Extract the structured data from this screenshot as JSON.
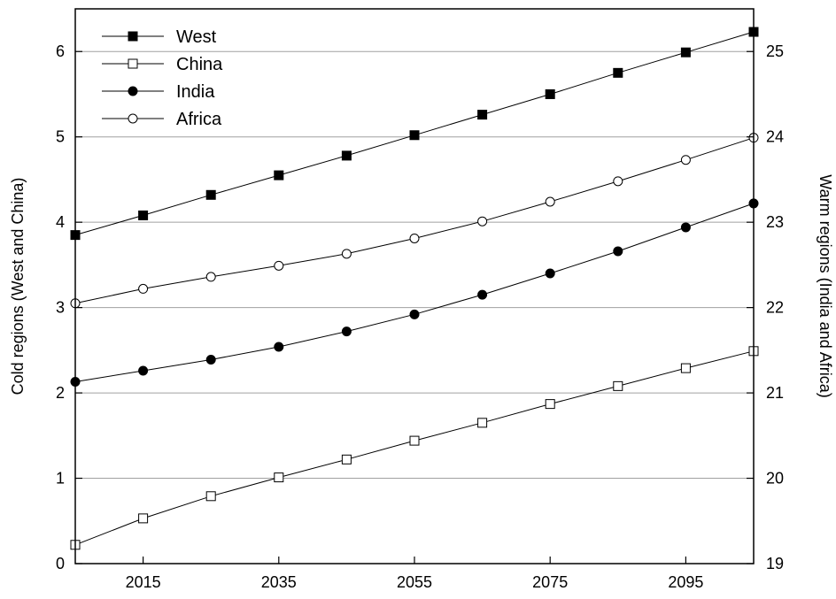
{
  "chart_data": {
    "type": "line",
    "x": [
      2005,
      2015,
      2025,
      2035,
      2045,
      2055,
      2065,
      2075,
      2085,
      2095,
      2105
    ],
    "x_ticks": [
      2015,
      2035,
      2055,
      2075,
      2095
    ],
    "xlim": [
      2005,
      2105
    ],
    "ylabel_left": "Cold regions (West and China)",
    "ylabel_right": "Warm regions (India and Africa)",
    "ylim_left": [
      0,
      6.5
    ],
    "yticks_left": [
      0,
      1,
      2,
      3,
      4,
      5,
      6
    ],
    "ylim_right": [
      19,
      25.5
    ],
    "yticks_right": [
      19,
      20,
      21,
      22,
      23,
      24,
      25
    ],
    "grid": "horizontal",
    "legend_position": "top-left",
    "series": [
      {
        "name": "West",
        "axis": "left",
        "marker": "filled-square",
        "values": [
          3.85,
          4.08,
          4.32,
          4.55,
          4.78,
          5.02,
          5.26,
          5.5,
          5.75,
          5.99,
          6.23
        ]
      },
      {
        "name": "China",
        "axis": "left",
        "marker": "open-square",
        "values": [
          0.22,
          0.53,
          0.79,
          1.01,
          1.22,
          1.44,
          1.65,
          1.87,
          2.08,
          2.29,
          2.49
        ]
      },
      {
        "name": "India",
        "axis": "right",
        "marker": "filled-circle",
        "values": [
          21.13,
          21.26,
          21.39,
          21.54,
          21.72,
          21.92,
          22.15,
          22.4,
          22.66,
          22.94,
          23.22
        ]
      },
      {
        "name": "Africa",
        "axis": "right",
        "marker": "open-circle",
        "values": [
          22.05,
          22.22,
          22.36,
          22.49,
          22.63,
          22.81,
          23.01,
          23.24,
          23.48,
          23.73,
          23.99
        ]
      }
    ]
  }
}
